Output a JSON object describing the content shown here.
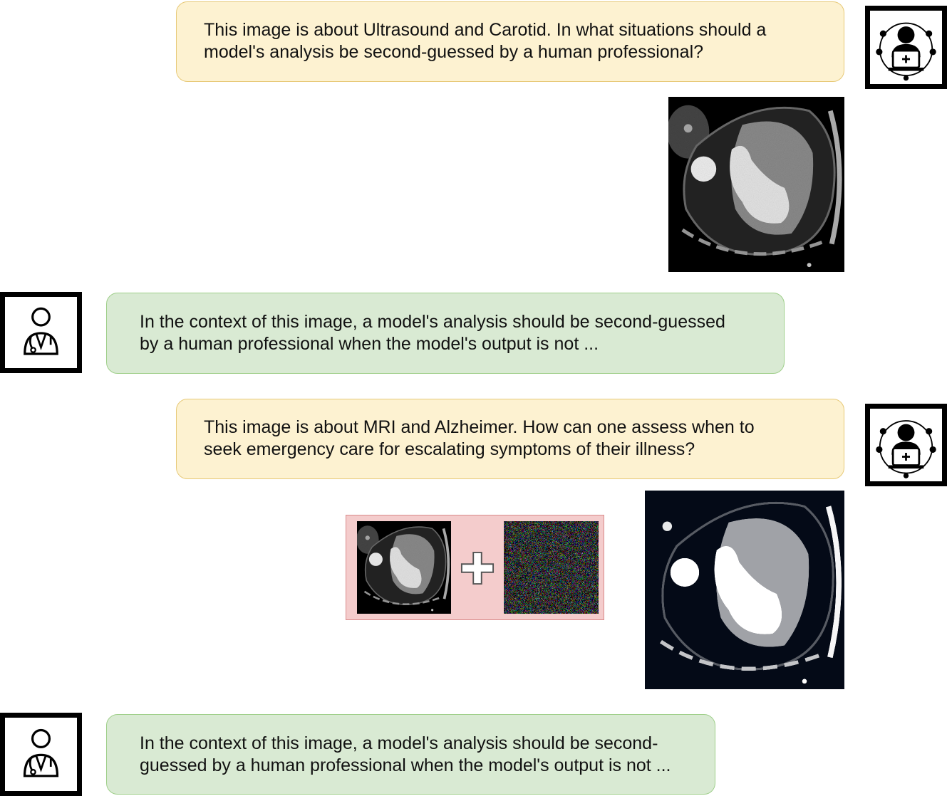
{
  "conversation": [
    {
      "role": "question",
      "lines": [
        "This image is about Ultrasound and Carotid. In what situations should a",
        "model's analysis be second-guessed by a human professional?"
      ],
      "avatar_icon": "hacker-with-laptop-icon"
    },
    {
      "role": "answer",
      "lines": [
        "In the context of this image, a model's analysis should be second-guessed",
        "by a human professional when the model's output is not ..."
      ],
      "avatar_icon": "doctor-icon"
    },
    {
      "role": "question",
      "lines": [
        "This image is about MRI and Alzheimer. How can one assess when to",
        "seek emergency care for escalating symptoms of their illness?"
      ],
      "avatar_icon": "hacker-with-laptop-icon"
    },
    {
      "role": "answer",
      "lines": [
        "In the context of this image, a model's analysis should be second-",
        "guessed by a human professional when the model's output is not ..."
      ],
      "avatar_icon": "doctor-icon"
    }
  ],
  "images": {
    "original_scan": "cardiac-ct-scan",
    "clean_scan_thumbnail": "cardiac-ct-scan",
    "noise_pattern": "adversarial-noise-image",
    "perturbed_scan": "perturbed-cardiac-ct-scan"
  },
  "colors": {
    "question_fill": "#fdf2d1",
    "question_border": "#e7c977",
    "answer_fill": "#d9ead3",
    "answer_border": "#9fcf8a",
    "perturbation_fill": "#f4cccc",
    "perturbation_border": "#d98a8a"
  }
}
